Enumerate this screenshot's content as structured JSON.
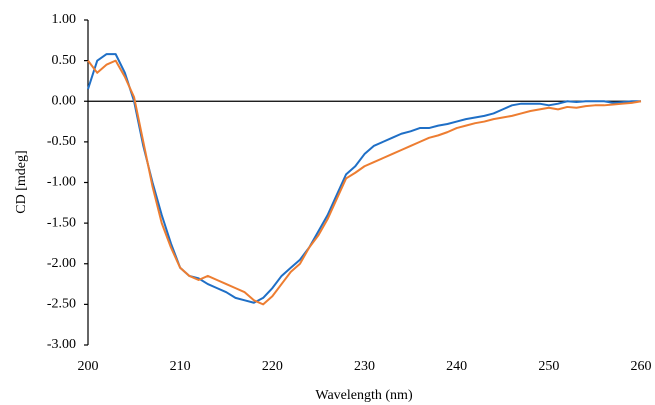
{
  "chart_data": {
    "type": "line",
    "x_label": "Wavelength (nm)",
    "y_label": "CD [mdeg]",
    "x": [
      200,
      201,
      202,
      203,
      204,
      205,
      206,
      207,
      208,
      209,
      210,
      211,
      212,
      213,
      214,
      215,
      216,
      217,
      218,
      219,
      220,
      221,
      222,
      223,
      224,
      225,
      226,
      227,
      228,
      229,
      230,
      231,
      232,
      233,
      234,
      235,
      236,
      237,
      238,
      239,
      240,
      241,
      242,
      243,
      244,
      245,
      246,
      247,
      248,
      249,
      250,
      251,
      252,
      253,
      254,
      255,
      256,
      257,
      258,
      259,
      260
    ],
    "series": [
      {
        "color": "#1f6fc6",
        "values": [
          0.15,
          0.5,
          0.58,
          0.58,
          0.35,
          0.0,
          -0.55,
          -1.0,
          -1.4,
          -1.75,
          -2.05,
          -2.15,
          -2.18,
          -2.25,
          -2.3,
          -2.35,
          -2.42,
          -2.45,
          -2.48,
          -2.42,
          -2.3,
          -2.15,
          -2.05,
          -1.95,
          -1.8,
          -1.6,
          -1.4,
          -1.15,
          -0.9,
          -0.8,
          -0.65,
          -0.55,
          -0.5,
          -0.45,
          -0.4,
          -0.37,
          -0.33,
          -0.33,
          -0.3,
          -0.28,
          -0.25,
          -0.22,
          -0.2,
          -0.18,
          -0.15,
          -0.1,
          -0.05,
          -0.03,
          -0.03,
          -0.03,
          -0.05,
          -0.03,
          0.0,
          -0.01,
          0.0,
          0.0,
          0.0,
          -0.02,
          -0.01,
          0.0,
          0.0
        ]
      },
      {
        "color": "#ed7d31",
        "values": [
          0.5,
          0.35,
          0.45,
          0.5,
          0.3,
          0.05,
          -0.5,
          -1.05,
          -1.5,
          -1.8,
          -2.05,
          -2.15,
          -2.2,
          -2.15,
          -2.2,
          -2.25,
          -2.3,
          -2.35,
          -2.45,
          -2.5,
          -2.4,
          -2.25,
          -2.1,
          -2.0,
          -1.8,
          -1.65,
          -1.45,
          -1.2,
          -0.95,
          -0.88,
          -0.8,
          -0.75,
          -0.7,
          -0.65,
          -0.6,
          -0.55,
          -0.5,
          -0.45,
          -0.42,
          -0.38,
          -0.33,
          -0.3,
          -0.27,
          -0.25,
          -0.22,
          -0.2,
          -0.18,
          -0.15,
          -0.12,
          -0.1,
          -0.08,
          -0.1,
          -0.07,
          -0.08,
          -0.06,
          -0.05,
          -0.05,
          -0.04,
          -0.03,
          -0.02,
          0.0
        ]
      }
    ],
    "xlim": [
      200,
      260
    ],
    "xticks": [
      200,
      210,
      220,
      230,
      240,
      250,
      260
    ],
    "ylim": [
      -3,
      1
    ],
    "yticks": [
      {
        "value": 1,
        "label": "1.00"
      },
      {
        "value": 0.5,
        "label": "0.50"
      },
      {
        "value": 0,
        "label": "0.00"
      },
      {
        "value": -0.5,
        "label": "-0.50"
      },
      {
        "value": -1,
        "label": "-1.00"
      },
      {
        "value": -1.5,
        "label": "-1.50"
      },
      {
        "value": -2,
        "label": "-2.00"
      },
      {
        "value": -2.5,
        "label": "-2.50"
      },
      {
        "value": -3,
        "label": "-3.00"
      }
    ],
    "grid": false
  }
}
